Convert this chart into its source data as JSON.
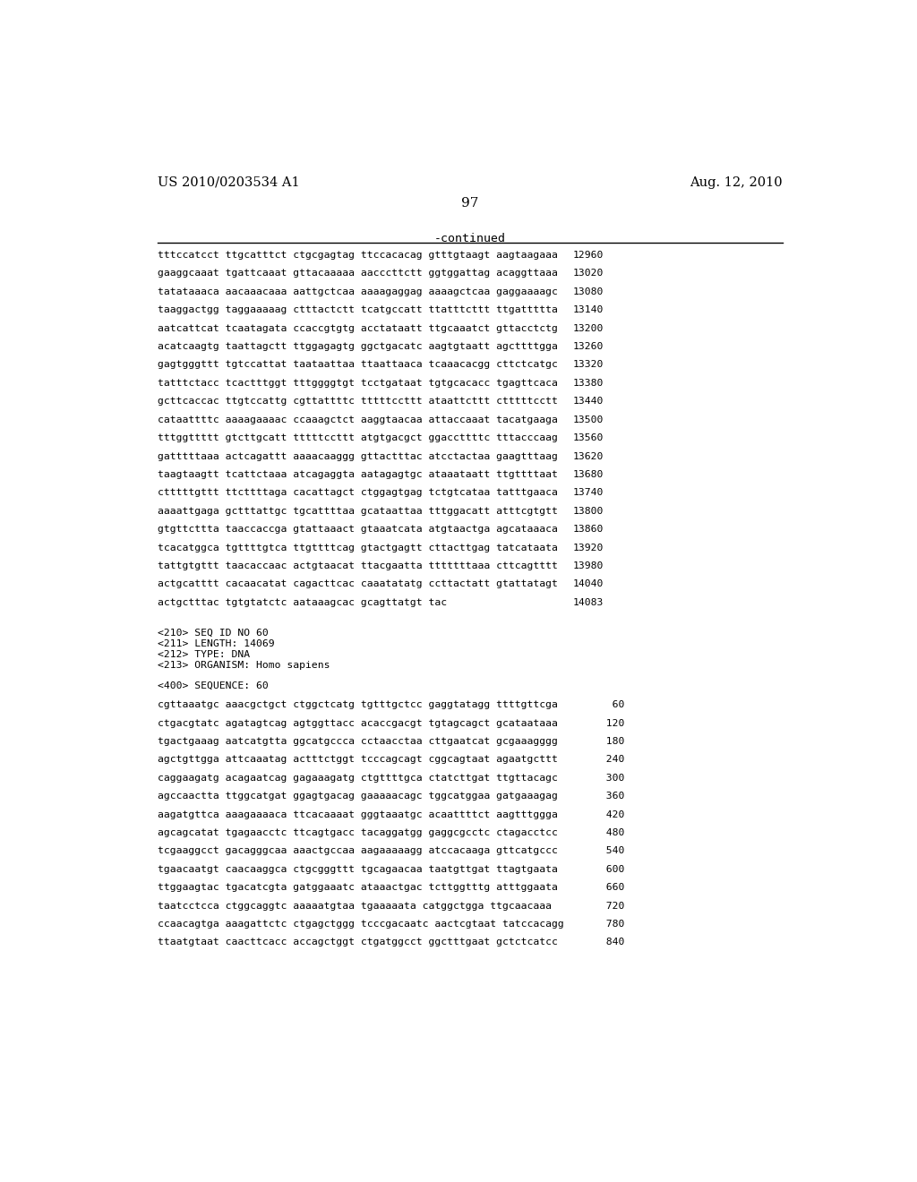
{
  "left_header": "US 2010/0203534 A1",
  "right_header": "Aug. 12, 2010",
  "page_number": "97",
  "continued_label": "-continued",
  "background_color": "#ffffff",
  "text_color": "#000000",
  "sequence_lines_top": [
    [
      "tttccatcct ttgcatttct ctgcgagtag ttccacacag gtttgtaagt aagtaagaaa",
      "12960"
    ],
    [
      "gaaggcaaat tgattcaaat gttacaaaaa aacccttctt ggtggattag acaggttaaa",
      "13020"
    ],
    [
      "tatataaaca aacaaacaaa aattgctcaa aaaagaggag aaaagctcaa gaggaaaagc",
      "13080"
    ],
    [
      "taaggactgg taggaaaaag ctttactctt tcatgccatt ttatttcttt ttgattttta",
      "13140"
    ],
    [
      "aatcattcat tcaatagata ccaccgtgtg acctataatt ttgcaaatct gttacctctg",
      "13200"
    ],
    [
      "acatcaagtg taattagctt ttggagagtg ggctgacatc aagtgtaatt agcttttgga",
      "13260"
    ],
    [
      "gagtgggttt tgtccattat taataattaa ttaattaaca tcaaacacgg cttctcatgc",
      "13320"
    ],
    [
      "tatttctacc tcactttggt tttggggtgt tcctgataat tgtgcacacc tgagttcaca",
      "13380"
    ],
    [
      "gcttcaccac ttgtccattg cgttattttc tttttccttt ataattcttt ctttttcctt",
      "13440"
    ],
    [
      "cataattttc aaaagaaaac ccaaagctct aaggtaacaa attaccaaat tacatgaaga",
      "13500"
    ],
    [
      "tttggttttt gtcttgcatt tttttccttt atgtgacgct ggaccttttc tttacccaag",
      "13560"
    ],
    [
      "gatttttaaa actcagattt aaaacaaggg gttactttac atcctactaa gaagtttaag",
      "13620"
    ],
    [
      "taagtaagtt tcattctaaa atcagaggta aatagagtgc ataaataatt ttgttttaat",
      "13680"
    ],
    [
      "ctttttgttt ttcttttaga cacattagct ctggagtgag tctgtcataa tatttgaaca",
      "13740"
    ],
    [
      "aaaattgaga gctttattgc tgcattttaa gcataattaa tttggacatt atttcgtgtt",
      "13800"
    ],
    [
      "gtgttcttta taaccaccga gtattaaact gtaaatcata atgtaactga agcataaaca",
      "13860"
    ],
    [
      "tcacatggca tgttttgtca ttgttttcag gtactgagtt cttacttgag tatcataata",
      "13920"
    ],
    [
      "tattgtgttt taacaccaac actgtaacat ttacgaatta tttttttaaa cttcagtttt",
      "13980"
    ],
    [
      "actgcatttt cacaacatat cagacttcac caaatatatg ccttactatt gtattatagt",
      "14040"
    ],
    [
      "actgctttac tgtgtatctc aataaagcac gcagttatgt tac",
      "14083"
    ]
  ],
  "metadata_lines": [
    "<210> SEQ ID NO 60",
    "<211> LENGTH: 14069",
    "<212> TYPE: DNA",
    "<213> ORGANISM: Homo sapiens"
  ],
  "sequence_label": "<400> SEQUENCE: 60",
  "sequence_lines_bottom": [
    [
      "cgttaaatgc aaacgctgct ctggctcatg tgtttgctcc gaggtatagg ttttgttcga",
      "60"
    ],
    [
      "ctgacgtatc agatagtcag agtggttacc acaccgacgt tgtagcagct gcataataaa",
      "120"
    ],
    [
      "tgactgaaag aatcatgtta ggcatgccca cctaacctaa cttgaatcat gcgaaagggg",
      "180"
    ],
    [
      "agctgttgga attcaaatag actttctggt tcccagcagt cggcagtaat agaatgcttt",
      "240"
    ],
    [
      "caggaagatg acagaatcag gagaaagatg ctgttttgca ctatcttgat ttgttacagc",
      "300"
    ],
    [
      "agccaactta ttggcatgat ggagtgacag gaaaaacagc tggcatggaa gatgaaagag",
      "360"
    ],
    [
      "aagatgttca aaagaaaaca ttcacaaaat gggtaaatgc acaattttct aagtttggga",
      "420"
    ],
    [
      "agcagcatat tgagaacctc ttcagtgacc tacaggatgg gaggcgcctc ctagacctcc",
      "480"
    ],
    [
      "tcgaaggcct gacagggcaa aaactgccaa aagaaaaagg atccacaaga gttcatgccc",
      "540"
    ],
    [
      "tgaacaatgt caacaaggca ctgcgggttt tgcagaacaa taatgttgat ttagtgaata",
      "600"
    ],
    [
      "ttggaagtac tgacatcgta gatggaaatc ataaactgac tcttggtttg atttggaata",
      "660"
    ],
    [
      "taatcctcca ctggcaggtc aaaaatgtaa tgaaaaata catggctgga ttgcaacaaa",
      "720"
    ],
    [
      "ccaacagtga aaagattctc ctgagctggg tcccgacaatc aactcgtaat tatccacagg",
      "780"
    ],
    [
      "ttaatgtaat caacttcacc accagctggt ctgatggcct ggctttgaat gctctcatcc",
      "840"
    ]
  ]
}
